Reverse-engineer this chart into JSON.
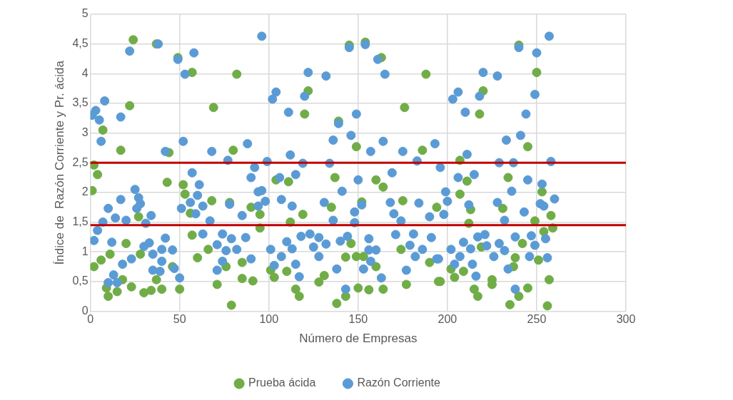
{
  "chart_data": {
    "type": "scatter",
    "xlabel": "Número de Empresas",
    "ylabel": "Índice de  Razón Corriente y Pr. ácida",
    "xlim": [
      0,
      300
    ],
    "xticks": [
      0,
      50,
      100,
      150,
      200,
      250,
      300
    ],
    "ylim": [
      0,
      5
    ],
    "yticks": [
      0,
      {
        "value": 0.5,
        "label": "0,5"
      },
      1,
      {
        "value": 1.5,
        "label": "1,5"
      },
      2,
      {
        "value": 2.5,
        "label": "2,5"
      },
      3,
      {
        "value": 3.5,
        "label": "3,5"
      },
      4,
      {
        "value": 4.5,
        "label": "4,5"
      },
      5
    ],
    "grid": true,
    "legend": "bottom",
    "marker": "circle",
    "ref_lines": [
      {
        "axis": "y",
        "value": 2.5,
        "color": "#c00000"
      },
      {
        "axis": "y",
        "value": 1.45,
        "color": "#c00000"
      }
    ],
    "series": [
      {
        "name": "Prueba ácida",
        "color": "#70ad47",
        "x": [
          24,
          37,
          49,
          57,
          82,
          22,
          69,
          7,
          17,
          44,
          80,
          145,
          154,
          163,
          188,
          122,
          120,
          139,
          176,
          149,
          186,
          240,
          250,
          220,
          218,
          245,
          207,
          2,
          4,
          1,
          43,
          27,
          20,
          11,
          6,
          2,
          9,
          10,
          15,
          23,
          30,
          34,
          40,
          50,
          18,
          37,
          46,
          28,
          52,
          53,
          68,
          56,
          57,
          66,
          60,
          76,
          85,
          71,
          85,
          91,
          79,
          78,
          90,
          104,
          111,
          137,
          160,
          164,
          135,
          119,
          152,
          175,
          194,
          112,
          95,
          95,
          146,
          174,
          143,
          149,
          153,
          160,
          190,
          101,
          110,
          103,
          128,
          131,
          177,
          195,
          115,
          117,
          143,
          150,
          156,
          164,
          138,
          211,
          234,
          253,
          207,
          213,
          231,
          258,
          249,
          212,
          259,
          254,
          242,
          219,
          238,
          251,
          202,
          209,
          237,
          204,
          196,
          225,
          225,
          257,
          215,
          217,
          245,
          240,
          235,
          256
        ],
        "values": [
          4.57,
          4.5,
          4.27,
          4.02,
          3.99,
          3.46,
          3.43,
          3.05,
          2.71,
          2.67,
          2.71,
          4.48,
          4.53,
          4.27,
          3.99,
          3.71,
          3.32,
          3.2,
          3.43,
          2.77,
          2.71,
          4.48,
          4.02,
          3.71,
          3.32,
          2.77,
          2.54,
          2.46,
          2.3,
          2.03,
          2.17,
          1.59,
          1.14,
          0.96,
          0.86,
          0.75,
          0.39,
          0.25,
          0.33,
          0.41,
          0.31,
          0.35,
          0.37,
          0.37,
          0.53,
          0.53,
          0.75,
          0.96,
          2.13,
          1.97,
          1.86,
          1.65,
          1.28,
          1.04,
          0.9,
          0.75,
          0.82,
          0.45,
          0.55,
          0.51,
          0.1,
          1.83,
          1.75,
          2.21,
          2.18,
          2.25,
          2.21,
          2.09,
          1.75,
          1.63,
          1.84,
          1.86,
          1.75,
          1.5,
          1.63,
          1.4,
          1.14,
          1.04,
          0.91,
          0.92,
          0.92,
          0.75,
          0.82,
          0.69,
          0.67,
          0.57,
          0.49,
          0.6,
          0.45,
          0.5,
          0.37,
          0.25,
          0.25,
          0.39,
          0.36,
          0.37,
          0.13,
          2.19,
          2.25,
          2.01,
          1.97,
          1.71,
          1.73,
          1.61,
          1.52,
          1.48,
          1.4,
          1.34,
          1.14,
          1.08,
          0.9,
          0.86,
          0.71,
          0.67,
          0.75,
          0.57,
          0.5,
          0.53,
          0.45,
          0.53,
          0.37,
          0.25,
          0.39,
          0.25,
          0.11,
          0.09
        ]
      },
      {
        "name": "Razón Corriente",
        "color": "#5b9bd5",
        "x": [
          22,
          38,
          49,
          58,
          53,
          96,
          8,
          3,
          1,
          5,
          17,
          6,
          42,
          52,
          68,
          88,
          77,
          145,
          154,
          161,
          122,
          132,
          165,
          104,
          102,
          120,
          111,
          139,
          149,
          136,
          146,
          157,
          164,
          112,
          175,
          193,
          257,
          240,
          250,
          220,
          228,
          206,
          203,
          218,
          249,
          210,
          244,
          233,
          241,
          211,
          25,
          27,
          17,
          28,
          26,
          10,
          34,
          14,
          20,
          7,
          31,
          4,
          2,
          12,
          42,
          30,
          33,
          35,
          40,
          46,
          23,
          18,
          40,
          47,
          35,
          39,
          50,
          13,
          10,
          15,
          57,
          61,
          60,
          56,
          63,
          51,
          59,
          67,
          63,
          74,
          79,
          71,
          76,
          82,
          87,
          74,
          71,
          90,
          78,
          85,
          94,
          92,
          90,
          94,
          99,
          106,
          115,
          150,
          169,
          141,
          96,
          107,
          98,
          131,
          113,
          148,
          152,
          168,
          184,
          170,
          190,
          136,
          174,
          148,
          123,
          118,
          128,
          144,
          156,
          181,
          171,
          191,
          110,
          132,
          140,
          113,
          125,
          101,
          156,
          160,
          179,
          186,
          107,
          128,
          182,
          194,
          103,
          115,
          157,
          177,
          138,
          153,
          117,
          163,
          143,
          119,
          134,
          183,
          229,
          237,
          258,
          196,
          206,
          215,
          245,
          253,
          236,
          199,
          260,
          200,
          212,
          228,
          252,
          254,
          243,
          198,
          232,
          255,
          247,
          238,
          217,
          221,
          209,
          229,
          222,
          249,
          213,
          232,
          202,
          207,
          226,
          246,
          256,
          195,
          214,
          204,
          234,
          216,
          238
        ],
        "values": [
          4.38,
          4.5,
          4.24,
          4.35,
          3.99,
          4.63,
          3.54,
          3.38,
          3.3,
          3.22,
          3.27,
          2.86,
          2.69,
          2.86,
          2.69,
          2.82,
          2.54,
          4.44,
          4.49,
          4.24,
          4.02,
          3.96,
          3.99,
          3.69,
          3.57,
          3.62,
          3.35,
          3.16,
          3.32,
          2.88,
          2.96,
          2.69,
          2.86,
          2.63,
          2.69,
          2.82,
          4.63,
          4.44,
          4.35,
          4.02,
          3.96,
          3.69,
          3.57,
          3.62,
          3.65,
          3.35,
          3.32,
          2.88,
          2.96,
          2.64,
          2.05,
          1.91,
          1.88,
          1.81,
          1.73,
          1.73,
          1.61,
          1.57,
          1.53,
          1.5,
          1.48,
          1.36,
          1.19,
          1.16,
          1.23,
          1.09,
          1.15,
          0.96,
          1.04,
          1.03,
          0.88,
          0.79,
          0.84,
          0.72,
          0.69,
          0.67,
          0.56,
          0.61,
          0.48,
          0.48,
          2.33,
          2.13,
          1.95,
          1.83,
          1.77,
          1.73,
          1.64,
          1.52,
          1.3,
          1.3,
          1.22,
          1.12,
          1.02,
          1.04,
          1.24,
          0.84,
          0.69,
          0.88,
          1.8,
          1.61,
          1.77,
          2.42,
          2.25,
          2.01,
          2.52,
          2.25,
          2.3,
          2.21,
          2.33,
          2.02,
          2.03,
          1.88,
          1.85,
          1.83,
          1.77,
          1.67,
          1.79,
          1.83,
          1.82,
          1.64,
          1.59,
          1.53,
          1.52,
          1.49,
          1.3,
          1.26,
          1.24,
          1.26,
          1.22,
          1.3,
          1.29,
          1.24,
          1.17,
          1.13,
          1.18,
          1.05,
          1.08,
          1.04,
          1.03,
          1.03,
          1.11,
          1.04,
          0.92,
          0.92,
          0.92,
          0.88,
          0.77,
          0.79,
          0.84,
          0.69,
          0.71,
          0.71,
          0.58,
          0.56,
          0.37,
          2.49,
          2.49,
          2.53,
          2.5,
          2.5,
          2.52,
          2.42,
          2.25,
          2.3,
          2.21,
          2.14,
          2.02,
          2.01,
          1.89,
          1.85,
          1.79,
          1.83,
          1.81,
          1.77,
          1.67,
          1.63,
          1.53,
          1.22,
          1.27,
          1.25,
          1.25,
          1.29,
          1.16,
          1.14,
          1.1,
          1.11,
          1.05,
          1.02,
          1.04,
          0.92,
          0.92,
          0.92,
          0.9,
          0.88,
          0.79,
          0.79,
          0.71,
          0.59,
          0.37
        ]
      }
    ]
  }
}
